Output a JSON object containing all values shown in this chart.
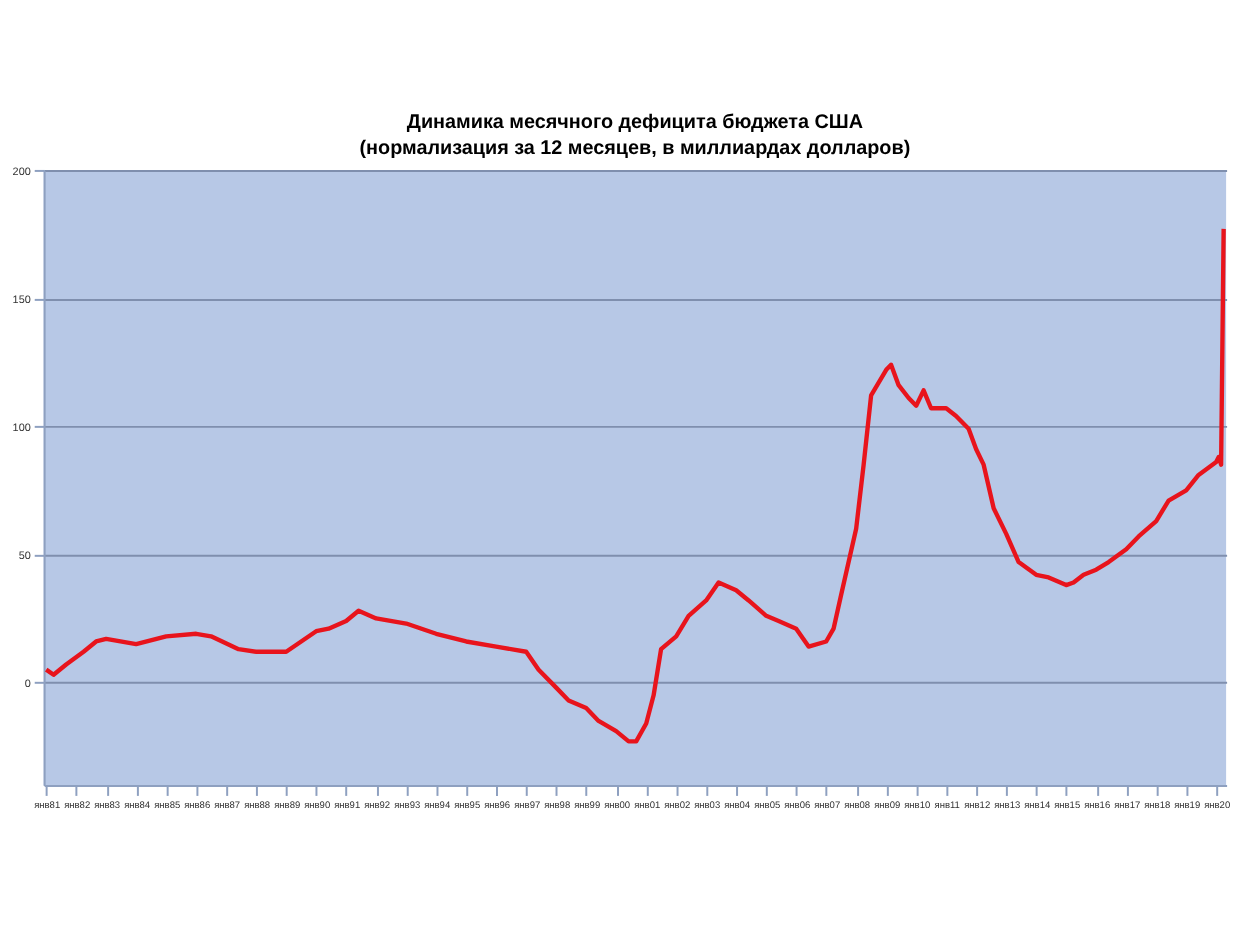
{
  "chart_data": {
    "type": "line",
    "title": "Динамика месячного дефицита бюджета США",
    "subtitle": "(нормализация за 12 месяцев, в миллиардах долларов)",
    "x": [
      "1981-01",
      "1981-04",
      "1981-09",
      "1982-04",
      "1982-09",
      "1983-01",
      "1984-01",
      "1985-01",
      "1986-01",
      "1986-07",
      "1987-06",
      "1988-01",
      "1989-01",
      "1990-01",
      "1990-06",
      "1991-01",
      "1991-06",
      "1992-01",
      "1993-01",
      "1994-01",
      "1995-01",
      "1996-01",
      "1997-01",
      "1997-06",
      "1998-01",
      "1998-06",
      "1999-01",
      "1999-06",
      "2000-01",
      "2000-06",
      "2000-09",
      "2001-01",
      "2001-04",
      "2001-07",
      "2002-01",
      "2002-06",
      "2003-01",
      "2003-06",
      "2004-01",
      "2004-06",
      "2005-01",
      "2005-06",
      "2006-01",
      "2006-06",
      "2007-01",
      "2007-04",
      "2007-07",
      "2008-01",
      "2008-04",
      "2008-07",
      "2009-01",
      "2009-03",
      "2009-06",
      "2009-10",
      "2010-01",
      "2010-04",
      "2010-07",
      "2011-01",
      "2011-05",
      "2011-10",
      "2012-01",
      "2012-04",
      "2012-08",
      "2013-01",
      "2013-06",
      "2014-01",
      "2014-06",
      "2015-01",
      "2015-04",
      "2015-08",
      "2016-01",
      "2016-06",
      "2017-01",
      "2017-06",
      "2018-01",
      "2018-06",
      "2019-01",
      "2019-06",
      "2020-01",
      "2020-02",
      "2020-03",
      "2020-04"
    ],
    "series": [
      {
        "color": "#e8141c",
        "values": [
          5,
          3,
          7,
          12,
          16,
          17,
          15,
          18,
          19,
          18,
          13,
          12,
          12,
          20,
          21,
          24,
          28,
          25,
          23,
          19,
          16,
          14,
          12,
          5,
          -2,
          -7,
          -10,
          -15,
          -19,
          -23,
          -23,
          -16,
          -5,
          13,
          18,
          26,
          32,
          39,
          36,
          32,
          26,
          24,
          21,
          14,
          16,
          21,
          34,
          60,
          85,
          112,
          122,
          124,
          116,
          111,
          108,
          114,
          107,
          107,
          104,
          99,
          91,
          85,
          68,
          58,
          47,
          42,
          41,
          38,
          39,
          42,
          44,
          47,
          52,
          57,
          63,
          71,
          75,
          81,
          86,
          88,
          85,
          177
        ]
      }
    ],
    "xlim": [
      "1980-12",
      "2020-05"
    ],
    "xticks": [
      {
        "value": "1981-01",
        "label": "янв81"
      },
      {
        "value": "1982-01",
        "label": "янв82"
      },
      {
        "value": "1983-01",
        "label": "янв83"
      },
      {
        "value": "1984-01",
        "label": "янв84"
      },
      {
        "value": "1985-01",
        "label": "янв85"
      },
      {
        "value": "1986-01",
        "label": "янв86"
      },
      {
        "value": "1987-01",
        "label": "янв87"
      },
      {
        "value": "1988-01",
        "label": "янв88"
      },
      {
        "value": "1989-01",
        "label": "янв89"
      },
      {
        "value": "1990-01",
        "label": "янв90"
      },
      {
        "value": "1991-01",
        "label": "янв91"
      },
      {
        "value": "1992-01",
        "label": "янв92"
      },
      {
        "value": "1993-01",
        "label": "янв93"
      },
      {
        "value": "1994-01",
        "label": "янв94"
      },
      {
        "value": "1995-01",
        "label": "янв95"
      },
      {
        "value": "1996-01",
        "label": "янв96"
      },
      {
        "value": "1997-01",
        "label": "янв97"
      },
      {
        "value": "1998-01",
        "label": "янв98"
      },
      {
        "value": "1999-01",
        "label": "янв99"
      },
      {
        "value": "2000-01",
        "label": "янв00"
      },
      {
        "value": "2001-01",
        "label": "янв01"
      },
      {
        "value": "2002-01",
        "label": "янв02"
      },
      {
        "value": "2003-01",
        "label": "янв03"
      },
      {
        "value": "2004-01",
        "label": "янв04"
      },
      {
        "value": "2005-01",
        "label": "янв05"
      },
      {
        "value": "2006-01",
        "label": "янв06"
      },
      {
        "value": "2007-01",
        "label": "янв07"
      },
      {
        "value": "2008-01",
        "label": "янв08"
      },
      {
        "value": "2009-01",
        "label": "янв09"
      },
      {
        "value": "2010-01",
        "label": "янв10"
      },
      {
        "value": "2011-01",
        "label": "янв11"
      },
      {
        "value": "2012-01",
        "label": "янв12"
      },
      {
        "value": "2013-01",
        "label": "янв13"
      },
      {
        "value": "2014-01",
        "label": "янв14"
      },
      {
        "value": "2015-01",
        "label": "янв15"
      },
      {
        "value": "2016-01",
        "label": "янв16"
      },
      {
        "value": "2017-01",
        "label": "янв17"
      },
      {
        "value": "2018-01",
        "label": "янв18"
      },
      {
        "value": "2019-01",
        "label": "янв19"
      },
      {
        "value": "2020-01",
        "label": "янв20"
      }
    ],
    "ylim": [
      -40,
      200
    ],
    "yticks": [
      0,
      50,
      100,
      150,
      200
    ],
    "grid": "y",
    "marker": "none",
    "line_style": "solid"
  }
}
